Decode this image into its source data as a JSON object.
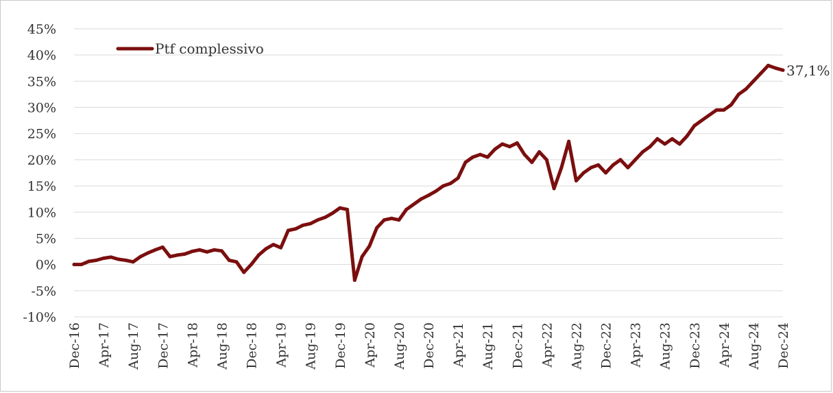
{
  "chart_data": {
    "type": "line",
    "title": "",
    "xlabel": "",
    "ylabel": "",
    "ylim": [
      -10,
      45
    ],
    "y_ticks": [
      "45%",
      "40%",
      "35%",
      "30%",
      "25%",
      "20%",
      "15%",
      "10%",
      "5%",
      "0%",
      "-5%",
      "-10%"
    ],
    "x_ticks": [
      "Dec-16",
      "Apr-17",
      "Aug-17",
      "Dec-17",
      "Apr-18",
      "Aug-18",
      "Dec-18",
      "Apr-19",
      "Aug-19",
      "Dec-19",
      "Apr-20",
      "Aug-20",
      "Dec-20",
      "Apr-21",
      "Aug-21",
      "Dec-21",
      "Apr-22",
      "Aug-22",
      "Dec-22",
      "Apr-23",
      "Aug-23",
      "Dec-23",
      "Apr-24",
      "Aug-24",
      "Dec-24"
    ],
    "grid": true,
    "legend": "top-left",
    "colors": {
      "series": "#7b0f0f",
      "grid": "#d9d9d9"
    },
    "end_label": "37,1%",
    "series": [
      {
        "name": "Ptf complessivo",
        "x": [
          "Dec-16",
          "Jan-17",
          "Feb-17",
          "Mar-17",
          "Apr-17",
          "May-17",
          "Jun-17",
          "Jul-17",
          "Aug-17",
          "Sep-17",
          "Oct-17",
          "Nov-17",
          "Dec-17",
          "Jan-18",
          "Feb-18",
          "Mar-18",
          "Apr-18",
          "May-18",
          "Jun-18",
          "Jul-18",
          "Aug-18",
          "Sep-18",
          "Oct-18",
          "Nov-18",
          "Dec-18",
          "Jan-19",
          "Feb-19",
          "Mar-19",
          "Apr-19",
          "May-19",
          "Jun-19",
          "Jul-19",
          "Aug-19",
          "Sep-19",
          "Oct-19",
          "Nov-19",
          "Dec-19",
          "Jan-20",
          "Feb-20",
          "Mar-20",
          "Apr-20",
          "May-20",
          "Jun-20",
          "Jul-20",
          "Aug-20",
          "Sep-20",
          "Oct-20",
          "Nov-20",
          "Dec-20",
          "Jan-21",
          "Feb-21",
          "Mar-21",
          "Apr-21",
          "May-21",
          "Jun-21",
          "Jul-21",
          "Aug-21",
          "Sep-21",
          "Oct-21",
          "Nov-21",
          "Dec-21",
          "Jan-22",
          "Feb-22",
          "Mar-22",
          "Apr-22",
          "May-22",
          "Jun-22",
          "Jul-22",
          "Aug-22",
          "Sep-22",
          "Oct-22",
          "Nov-22",
          "Dec-22",
          "Jan-23",
          "Feb-23",
          "Mar-23",
          "Apr-23",
          "May-23",
          "Jun-23",
          "Jul-23",
          "Aug-23",
          "Sep-23",
          "Oct-23",
          "Nov-23",
          "Dec-23",
          "Jan-24",
          "Feb-24",
          "Mar-24",
          "Apr-24",
          "May-24",
          "Jun-24",
          "Jul-24",
          "Aug-24",
          "Sep-24",
          "Oct-24",
          "Nov-24",
          "Dec-24"
        ],
        "values": [
          0.0,
          0.0,
          0.6,
          0.8,
          1.2,
          1.4,
          1.0,
          0.8,
          0.5,
          1.5,
          2.2,
          2.8,
          3.3,
          1.5,
          1.8,
          2.0,
          2.5,
          2.8,
          2.4,
          2.8,
          2.6,
          0.8,
          0.5,
          -1.5,
          0.0,
          1.8,
          3.0,
          3.8,
          3.2,
          6.5,
          6.8,
          7.5,
          7.8,
          8.5,
          9.0,
          9.8,
          10.8,
          10.5,
          -3.0,
          1.5,
          3.5,
          7.0,
          8.5,
          8.8,
          8.5,
          10.5,
          11.5,
          12.5,
          13.2,
          14.0,
          15.0,
          15.5,
          16.5,
          19.5,
          20.5,
          21.0,
          20.5,
          22.0,
          23.0,
          22.5,
          23.2,
          21.0,
          19.5,
          21.5,
          20.0,
          14.5,
          18.5,
          23.5,
          16.0,
          17.5,
          18.5,
          19.0,
          17.5,
          19.0,
          20.0,
          18.5,
          20.0,
          21.5,
          22.5,
          24.0,
          23.0,
          24.0,
          23.0,
          24.5,
          26.5,
          27.5,
          28.5,
          29.5,
          29.5,
          30.5,
          32.5,
          33.5,
          35.0,
          36.5,
          38.0,
          37.5,
          37.1
        ]
      }
    ]
  }
}
